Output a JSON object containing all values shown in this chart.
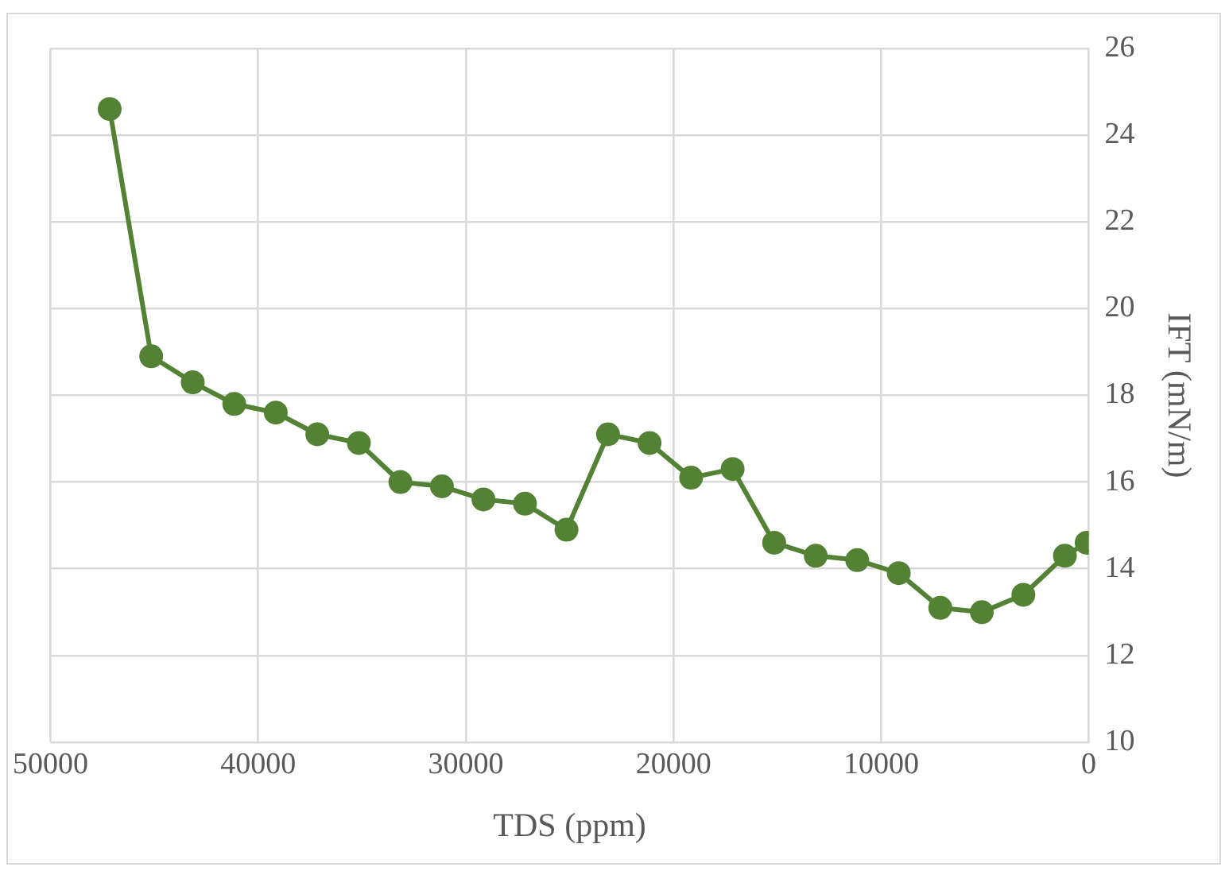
{
  "chart_data": {
    "type": "line",
    "xlabel": "TDS (ppm)",
    "ylabel": "IFT (mN/m)",
    "x": [
      47150,
      45150,
      43150,
      41150,
      39150,
      37150,
      35150,
      33150,
      31150,
      29150,
      27150,
      25150,
      23150,
      21150,
      19150,
      17150,
      15150,
      13150,
      11150,
      9150,
      7150,
      5150,
      3150,
      1150,
      100
    ],
    "series": [
      {
        "color": "#548235",
        "values": [
          24.6,
          18.9,
          18.3,
          17.8,
          17.6,
          17.1,
          16.9,
          16.0,
          15.9,
          15.6,
          15.5,
          14.9,
          17.1,
          16.9,
          16.1,
          16.3,
          14.6,
          14.3,
          14.2,
          13.9,
          13.1,
          13.0,
          13.4,
          14.3,
          14.6
        ]
      }
    ],
    "xlim": [
      50000,
      0
    ],
    "xticks": [
      50000,
      40000,
      30000,
      20000,
      10000,
      0
    ],
    "ylim": [
      10,
      26
    ],
    "yticks": [
      10,
      12,
      14,
      16,
      18,
      20,
      22,
      24,
      26
    ],
    "grid": true,
    "legend": false,
    "marker": "circle",
    "line_style": "solid"
  }
}
